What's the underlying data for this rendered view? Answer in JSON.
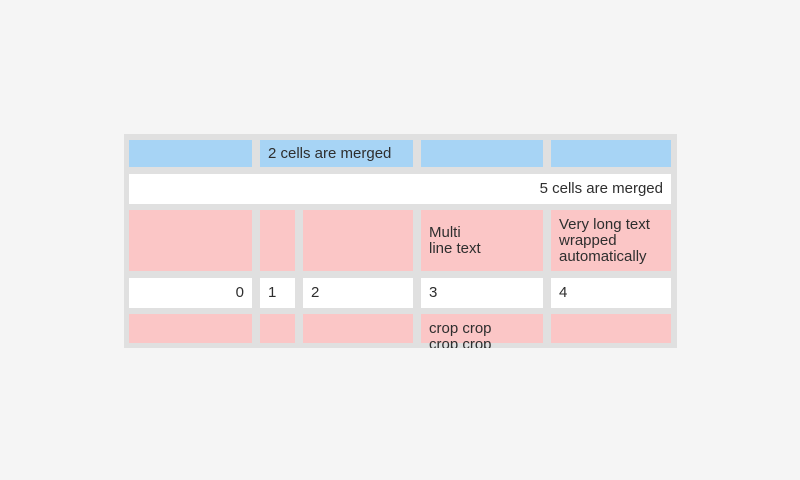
{
  "window": {
    "background_color": "#f5f5f5"
  },
  "table": {
    "colors": {
      "header_blue": "#a7d4f5",
      "row_pink": "#fbc6c6",
      "row_white": "#ffffff",
      "grid_gray": "#e0e0e0",
      "text": "#2e2e2e"
    },
    "rows": [
      {
        "cells": [
          "",
          "2 cells are merged",
          "",
          ""
        ]
      },
      {
        "cells": [
          "5 cells are merged"
        ]
      },
      {
        "cells": [
          "",
          "",
          "",
          "Multi\nline text",
          "Very long text wrapped automatically"
        ]
      },
      {
        "cells": [
          "0",
          "1",
          "2",
          "3",
          "4"
        ]
      },
      {
        "cells": [
          "",
          "",
          "",
          "crop crop crop crop",
          ""
        ]
      }
    ]
  }
}
